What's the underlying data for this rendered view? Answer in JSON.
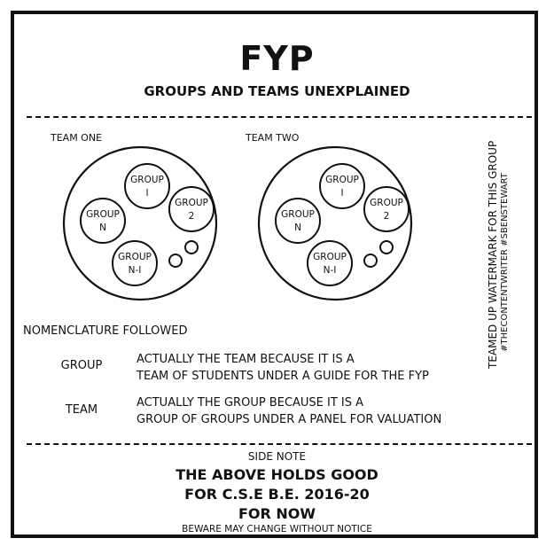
{
  "title": "FYP",
  "subtitle": "GROUPS AND TEAMS UNEXPLAINED",
  "teams": [
    {
      "label": "TEAM ONE",
      "groups": [
        {
          "line1": "GROUP",
          "line2": "I"
        },
        {
          "line1": "GROUP",
          "line2": "2"
        },
        {
          "line1": "GROUP",
          "line2": "N"
        },
        {
          "line1": "GROUP",
          "line2": "N-I"
        }
      ]
    },
    {
      "label": "TEAM TWO",
      "groups": [
        {
          "line1": "GROUP",
          "line2": "I"
        },
        {
          "line1": "GROUP",
          "line2": "2"
        },
        {
          "line1": "GROUP",
          "line2": "N"
        },
        {
          "line1": "GROUP",
          "line2": "N-I"
        }
      ]
    }
  ],
  "nomenclature": {
    "heading": "NOMENCLATURE FOLLOWED",
    "entries": [
      {
        "term": "GROUP",
        "line1": "ACTUALLY THE TEAM BECAUSE IT IS A",
        "line2": "TEAM OF STUDENTS UNDER A GUIDE FOR THE FYP"
      },
      {
        "term": "TEAM",
        "line1": "ACTUALLY THE GROUP BECAUSE IT IS A",
        "line2": "GROUP OF GROUPS UNDER A PANEL FOR VALUATION"
      }
    ]
  },
  "side_note": {
    "heading": "SIDE NOTE",
    "line1": "THE ABOVE HOLDS GOOD",
    "line2": "FOR C.S.E B.E. 2016-20",
    "line3": "FOR NOW",
    "small": "BEWARE MAY CHANGE WITHOUT NOTICE"
  },
  "watermark": {
    "line1": "TEAMED UP WATERMARK FOR THIS GROUP",
    "line2": "#THECONTENTWRITER #SBENSTEWART"
  }
}
